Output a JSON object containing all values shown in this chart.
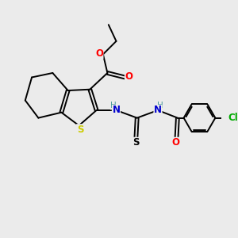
{
  "bg_color": "#ebebeb",
  "bond_color": "#000000",
  "figsize": [
    3.0,
    3.0
  ],
  "dpi": 100,
  "colors": {
    "O": "#ff0000",
    "S_ring": "#cccc00",
    "S_thio": "#000000",
    "N": "#0000cd",
    "H": "#4a9a9a",
    "Cl": "#00aa00",
    "C": "#000000"
  }
}
